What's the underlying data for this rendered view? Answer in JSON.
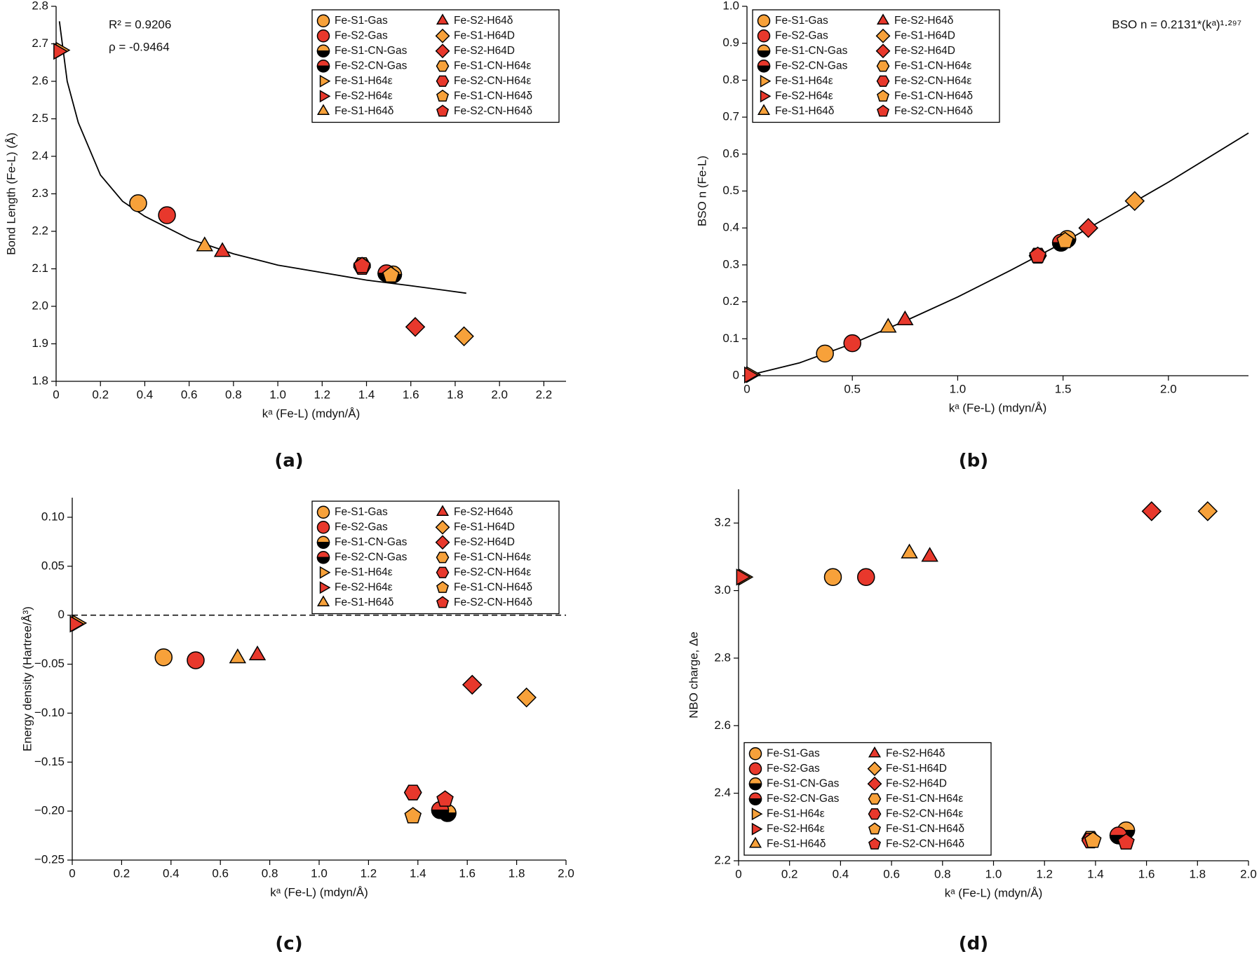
{
  "chart_data": [
    {
      "type": "scatter",
      "panel_label": "(a)",
      "x_label": "kᵃ (Fe-L) (mdyn/Å)",
      "y_label": "Bond Length (Fe-L) (Å)",
      "annotations": [
        "R² = 0.9206",
        "ρ = -0.9464"
      ],
      "legend": "upper right",
      "xlim": [
        0,
        2.3
      ],
      "ylim": [
        1.8,
        2.8
      ],
      "xticks": [
        0,
        0.2,
        0.4,
        0.6,
        0.8,
        {
          "value": 1,
          "label": "1.0"
        },
        1.2,
        1.4,
        1.6,
        1.8,
        {
          "value": 2,
          "label": "2.0"
        },
        2.2
      ],
      "yticks": [
        1.8,
        1.9,
        {
          "value": 2,
          "label": "2.0"
        },
        2.1,
        2.2,
        2.3,
        2.4,
        2.5,
        2.6,
        2.7,
        2.8
      ],
      "curve": {
        "x": [
          0.015,
          0.05,
          0.1,
          0.2,
          0.3,
          0.4,
          0.6,
          0.8,
          1.0,
          1.2,
          1.4,
          1.6,
          1.85
        ],
        "values": [
          2.76,
          2.6,
          2.49,
          2.35,
          2.28,
          2.24,
          2.18,
          2.14,
          2.11,
          2.09,
          2.07,
          2.055,
          2.035
        ]
      },
      "series": [
        {
          "name": "Fe-S1-Gas",
          "color": "#f7a13a",
          "marker": "circle",
          "x": [
            0.37
          ],
          "values": [
            2.275
          ]
        },
        {
          "name": "Fe-S2-Gas",
          "color": "#e8382c",
          "marker": "circle",
          "x": [
            0.5
          ],
          "values": [
            2.243
          ]
        },
        {
          "name": "Fe-S1-CN-Gas",
          "color": "#f7a13a",
          "marker": "half-circle",
          "x": [
            1.52
          ],
          "values": [
            2.085
          ]
        },
        {
          "name": "Fe-S2-CN-Gas",
          "color": "#e8382c",
          "marker": "half-circle",
          "x": [
            1.49
          ],
          "values": [
            2.088
          ]
        },
        {
          "name": "Fe-S1-H64ε",
          "color": "#f7a13a",
          "marker": "triangle-right",
          "x": [
            0.02
          ],
          "values": [
            2.683
          ]
        },
        {
          "name": "Fe-S2-H64ε",
          "color": "#e8382c",
          "marker": "triangle-right",
          "x": [
            0.01
          ],
          "values": [
            2.68
          ]
        },
        {
          "name": "Fe-S1-H64δ",
          "color": "#f7a13a",
          "marker": "triangle-up",
          "x": [
            0.67
          ],
          "values": [
            2.16
          ]
        },
        {
          "name": "Fe-S2-H64δ",
          "color": "#e8382c",
          "marker": "triangle-up",
          "x": [
            0.75
          ],
          "values": [
            2.145
          ]
        },
        {
          "name": "Fe-S1-H64D",
          "color": "#f7a13a",
          "marker": "diamond",
          "x": [
            1.84
          ],
          "values": [
            1.92
          ]
        },
        {
          "name": "Fe-S2-H64D",
          "color": "#e8382c",
          "marker": "diamond",
          "x": [
            1.62
          ],
          "values": [
            1.945
          ]
        },
        {
          "name": "Fe-S1-CN-H64ε",
          "color": "#f7a13a",
          "marker": "hexagon",
          "x": [
            1.38
          ],
          "values": [
            2.11
          ]
        },
        {
          "name": "Fe-S2-CN-H64ε",
          "color": "#e8382c",
          "marker": "hexagon",
          "x": [
            1.38
          ],
          "values": [
            2.105
          ]
        },
        {
          "name": "Fe-S1-CN-H64δ",
          "color": "#f7a13a",
          "marker": "pentagon",
          "x": [
            1.51
          ],
          "values": [
            2.083
          ]
        },
        {
          "name": "Fe-S2-CN-H64δ",
          "color": "#e8382c",
          "marker": "pentagon",
          "x": [
            1.38
          ],
          "values": [
            2.108
          ]
        }
      ]
    },
    {
      "type": "scatter",
      "panel_label": "(b)",
      "x_label": "kᵃ (Fe-L) (mdyn/Å)",
      "y_label": "BSO n (Fe-L)",
      "annotations": [
        "BSO n = 0.2131*(kᵃ)¹·²⁹⁷"
      ],
      "legend": "upper left",
      "xlim": [
        0,
        2.38
      ],
      "ylim": [
        0,
        1
      ],
      "xticks": [
        0,
        0.5,
        {
          "value": 1,
          "label": "1.0"
        },
        1.5,
        {
          "value": 2,
          "label": "2.0"
        }
      ],
      "yticks": [
        0,
        0.1,
        0.2,
        0.3,
        0.4,
        0.5,
        0.6,
        0.7,
        0.8,
        0.9,
        {
          "value": 1,
          "label": "1.0"
        }
      ],
      "curve": {
        "x": [
          0,
          0.25,
          0.5,
          0.75,
          1.0,
          1.25,
          1.5,
          1.75,
          2.0,
          2.38
        ],
        "values": [
          0,
          0.035,
          0.087,
          0.148,
          0.213,
          0.285,
          0.36,
          0.442,
          0.524,
          0.657
        ]
      },
      "series": [
        {
          "name": "Fe-S1-Gas",
          "color": "#f7a13a",
          "marker": "circle",
          "x": [
            0.37
          ],
          "values": [
            0.06
          ]
        },
        {
          "name": "Fe-S2-Gas",
          "color": "#e8382c",
          "marker": "circle",
          "x": [
            0.5
          ],
          "values": [
            0.088
          ]
        },
        {
          "name": "Fe-S1-CN-Gas",
          "color": "#f7a13a",
          "marker": "half-circle",
          "x": [
            1.52
          ],
          "values": [
            0.37
          ]
        },
        {
          "name": "Fe-S2-CN-Gas",
          "color": "#e8382c",
          "marker": "half-circle",
          "x": [
            1.49
          ],
          "values": [
            0.36
          ]
        },
        {
          "name": "Fe-S1-H64ε",
          "color": "#f7a13a",
          "marker": "triangle-right",
          "x": [
            0.02
          ],
          "values": [
            0.003
          ]
        },
        {
          "name": "Fe-S2-H64ε",
          "color": "#e8382c",
          "marker": "triangle-right",
          "x": [
            0.01
          ],
          "values": [
            0.002
          ]
        },
        {
          "name": "Fe-S1-H64δ",
          "color": "#f7a13a",
          "marker": "triangle-up",
          "x": [
            0.67
          ],
          "values": [
            0.13
          ]
        },
        {
          "name": "Fe-S2-H64δ",
          "color": "#e8382c",
          "marker": "triangle-up",
          "x": [
            0.75
          ],
          "values": [
            0.15
          ]
        },
        {
          "name": "Fe-S1-H64D",
          "color": "#f7a13a",
          "marker": "diamond",
          "x": [
            1.84
          ],
          "values": [
            0.473
          ]
        },
        {
          "name": "Fe-S2-H64D",
          "color": "#e8382c",
          "marker": "diamond",
          "x": [
            1.62
          ],
          "values": [
            0.4
          ]
        },
        {
          "name": "Fe-S1-CN-H64ε",
          "color": "#f7a13a",
          "marker": "hexagon",
          "x": [
            1.38
          ],
          "values": [
            0.325
          ]
        },
        {
          "name": "Fe-S2-CN-H64ε",
          "color": "#e8382c",
          "marker": "hexagon",
          "x": [
            1.38
          ],
          "values": [
            0.325
          ]
        },
        {
          "name": "Fe-S1-CN-H64δ",
          "color": "#f7a13a",
          "marker": "pentagon",
          "x": [
            1.51
          ],
          "values": [
            0.365
          ]
        },
        {
          "name": "Fe-S2-CN-H64δ",
          "color": "#e8382c",
          "marker": "pentagon",
          "x": [
            1.38
          ],
          "values": [
            0.325
          ]
        }
      ]
    },
    {
      "type": "scatter",
      "panel_label": "(c)",
      "x_label": "kᵃ (Fe-L) (mdyn/Å)",
      "y_label": "Energy density (Hartree/Å³)",
      "annotations": [],
      "legend": "upper right",
      "hline": 0,
      "xlim": [
        0,
        2
      ],
      "ylim": [
        -0.25,
        0.12
      ],
      "xticks": [
        0,
        0.2,
        0.4,
        0.6,
        0.8,
        {
          "value": 1,
          "label": "1.0"
        },
        1.2,
        1.4,
        1.6,
        1.8,
        {
          "value": 2,
          "label": "2.0"
        }
      ],
      "yticks": [
        {
          "value": -0.25,
          "label": "−0.25"
        },
        {
          "value": -0.2,
          "label": "−0.20"
        },
        {
          "value": -0.15,
          "label": "−0.15"
        },
        {
          "value": -0.1,
          "label": "−0.10"
        },
        {
          "value": -0.05,
          "label": "−0.05"
        },
        0,
        0.05,
        {
          "value": 0.1,
          "label": "0.10"
        }
      ],
      "series": [
        {
          "name": "Fe-S1-Gas",
          "color": "#f7a13a",
          "marker": "circle",
          "x": [
            0.37
          ],
          "values": [
            -0.043
          ]
        },
        {
          "name": "Fe-S2-Gas",
          "color": "#e8382c",
          "marker": "circle",
          "x": [
            0.5
          ],
          "values": [
            -0.046
          ]
        },
        {
          "name": "Fe-S1-CN-Gas",
          "color": "#f7a13a",
          "marker": "half-circle",
          "x": [
            1.52
          ],
          "values": [
            -0.202
          ]
        },
        {
          "name": "Fe-S2-CN-Gas",
          "color": "#e8382c",
          "marker": "half-circle",
          "x": [
            1.49
          ],
          "values": [
            -0.199
          ]
        },
        {
          "name": "Fe-S1-H64ε",
          "color": "#f7a13a",
          "marker": "triangle-right",
          "x": [
            0.02
          ],
          "values": [
            -0.008
          ]
        },
        {
          "name": "Fe-S2-H64ε",
          "color": "#e8382c",
          "marker": "triangle-right",
          "x": [
            0.01
          ],
          "values": [
            -0.009
          ]
        },
        {
          "name": "Fe-S1-H64δ",
          "color": "#f7a13a",
          "marker": "triangle-up",
          "x": [
            0.67
          ],
          "values": [
            -0.044
          ]
        },
        {
          "name": "Fe-S2-H64δ",
          "color": "#e8382c",
          "marker": "triangle-up",
          "x": [
            0.75
          ],
          "values": [
            -0.041
          ]
        },
        {
          "name": "Fe-S1-H64D",
          "color": "#f7a13a",
          "marker": "diamond",
          "x": [
            1.84
          ],
          "values": [
            -0.084
          ]
        },
        {
          "name": "Fe-S2-H64D",
          "color": "#e8382c",
          "marker": "diamond",
          "x": [
            1.62
          ],
          "values": [
            -0.071
          ]
        },
        {
          "name": "Fe-S1-CN-H64ε",
          "color": "#f7a13a",
          "marker": "hexagon",
          "x": [
            1.38
          ],
          "values": [
            -0.181
          ]
        },
        {
          "name": "Fe-S2-CN-H64ε",
          "color": "#e8382c",
          "marker": "hexagon",
          "x": [
            1.38
          ],
          "values": [
            -0.181
          ]
        },
        {
          "name": "Fe-S1-CN-H64δ",
          "color": "#f7a13a",
          "marker": "pentagon",
          "x": [
            1.38
          ],
          "values": [
            -0.205
          ]
        },
        {
          "name": "Fe-S2-CN-H64δ",
          "color": "#e8382c",
          "marker": "pentagon",
          "x": [
            1.51
          ],
          "values": [
            -0.188
          ]
        }
      ]
    },
    {
      "type": "scatter",
      "panel_label": "(d)",
      "x_label": "kᵃ (Fe-L) (mdyn/Å)",
      "y_label": "NBO charge, Δe",
      "annotations": [],
      "legend": "lower left",
      "xlim": [
        0,
        2
      ],
      "ylim": [
        2.2,
        3.3
      ],
      "xticks": [
        0,
        0.2,
        0.4,
        0.6,
        0.8,
        {
          "value": 1,
          "label": "1.0"
        },
        1.2,
        1.4,
        1.6,
        1.8,
        {
          "value": 2,
          "label": "2.0"
        }
      ],
      "yticks": [
        2.2,
        2.4,
        2.6,
        2.8,
        {
          "value": 3,
          "label": "3.0"
        },
        3.2
      ],
      "series": [
        {
          "name": "Fe-S1-Gas",
          "color": "#f7a13a",
          "marker": "circle",
          "x": [
            0.37
          ],
          "values": [
            3.04
          ]
        },
        {
          "name": "Fe-S2-Gas",
          "color": "#e8382c",
          "marker": "circle",
          "x": [
            0.5
          ],
          "values": [
            3.04
          ]
        },
        {
          "name": "Fe-S1-CN-Gas",
          "color": "#f7a13a",
          "marker": "half-circle",
          "x": [
            1.52
          ],
          "values": [
            2.29
          ]
        },
        {
          "name": "Fe-S2-CN-Gas",
          "color": "#e8382c",
          "marker": "half-circle",
          "x": [
            1.49
          ],
          "values": [
            2.275
          ]
        },
        {
          "name": "Fe-S1-H64ε",
          "color": "#f7a13a",
          "marker": "triangle-right",
          "x": [
            0.02
          ],
          "values": [
            3.04
          ]
        },
        {
          "name": "Fe-S2-H64ε",
          "color": "#e8382c",
          "marker": "triangle-right",
          "x": [
            0.01
          ],
          "values": [
            3.04
          ]
        },
        {
          "name": "Fe-S1-H64δ",
          "color": "#f7a13a",
          "marker": "triangle-up",
          "x": [
            0.67
          ],
          "values": [
            3.11
          ]
        },
        {
          "name": "Fe-S2-H64δ",
          "color": "#e8382c",
          "marker": "triangle-up",
          "x": [
            0.75
          ],
          "values": [
            3.1
          ]
        },
        {
          "name": "Fe-S1-H64D",
          "color": "#f7a13a",
          "marker": "diamond",
          "x": [
            1.84
          ],
          "values": [
            3.235
          ]
        },
        {
          "name": "Fe-S2-H64D",
          "color": "#e8382c",
          "marker": "diamond",
          "x": [
            1.62
          ],
          "values": [
            3.235
          ]
        },
        {
          "name": "Fe-S1-CN-H64ε",
          "color": "#f7a13a",
          "marker": "hexagon",
          "x": [
            1.38
          ],
          "values": [
            2.265
          ]
        },
        {
          "name": "Fe-S2-CN-H64ε",
          "color": "#e8382c",
          "marker": "hexagon",
          "x": [
            1.38
          ],
          "values": [
            2.26
          ]
        },
        {
          "name": "Fe-S1-CN-H64δ",
          "color": "#f7a13a",
          "marker": "pentagon",
          "x": [
            1.39
          ],
          "values": [
            2.26
          ]
        },
        {
          "name": "Fe-S2-CN-H64δ",
          "color": "#e8382c",
          "marker": "pentagon",
          "x": [
            1.52
          ],
          "values": [
            2.255
          ]
        }
      ]
    }
  ]
}
